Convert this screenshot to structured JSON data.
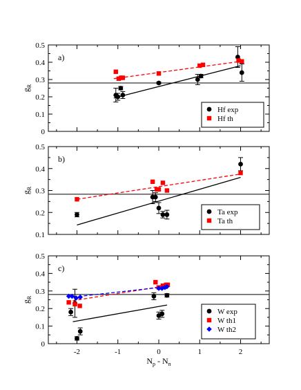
{
  "colors": {
    "exp": "#000000",
    "th": "#ff0000",
    "th2": "#0000ff",
    "frame": "#000000"
  },
  "shared_xaxis": {
    "xlim": [
      -2.7,
      2.7
    ],
    "xticks": [
      -2,
      -1,
      0,
      1,
      2
    ],
    "xlabel_main": "N",
    "xlabel_sub1": "p",
    "xlabel_mid": " - N",
    "xlabel_sub2": "n"
  },
  "chart_data": [
    {
      "type": "scatter",
      "panel_label": "a)",
      "ylabel_main": "g",
      "ylabel_sub": "R",
      "ylim": [
        0,
        0.5
      ],
      "yticks": [
        0,
        0.1,
        0.2,
        0.3,
        0.4,
        0.5
      ],
      "reference_line": 0.28,
      "fit_lines": [
        {
          "series": 0,
          "x": [
            -1.1,
            2.0
          ],
          "y": [
            0.193,
            0.38
          ],
          "style": "solid"
        },
        {
          "series": 1,
          "x": [
            -1.1,
            2.0
          ],
          "y": [
            0.305,
            0.405
          ],
          "style": "dashed"
        }
      ],
      "series": [
        {
          "name": "Hf exp",
          "marker": "circle",
          "color": "exp",
          "x": [
            -1.05,
            -1.0,
            -0.93,
            -0.88,
            0.0,
            0.95,
            1.03,
            1.93,
            2.03
          ],
          "y": [
            0.21,
            0.2,
            0.25,
            0.21,
            0.28,
            0.3,
            0.32,
            0.43,
            0.34
          ],
          "err": [
            0.04,
            0.02,
            0.01,
            0.02,
            0.005,
            0.03,
            0.01,
            0.06,
            0.05
          ]
        },
        {
          "name": "Hf th",
          "marker": "square",
          "color": "th",
          "x": [
            -1.05,
            -0.98,
            -0.92,
            -0.88,
            0.0,
            1.0,
            1.08,
            1.95,
            2.03
          ],
          "y": [
            0.345,
            0.305,
            0.31,
            0.31,
            0.335,
            0.38,
            0.385,
            0.41,
            0.405
          ]
        }
      ],
      "legend_position": "bottom-right"
    },
    {
      "type": "scatter",
      "panel_label": "b)",
      "ylabel_main": "g",
      "ylabel_sub": "R",
      "ylim": [
        0.1,
        0.5
      ],
      "yticks": [
        0.1,
        0.2,
        0.3,
        0.4,
        0.5
      ],
      "reference_line": 0.283,
      "fit_lines": [
        {
          "series": 0,
          "x": [
            -2.0,
            2.0
          ],
          "y": [
            0.143,
            0.36
          ],
          "style": "solid"
        },
        {
          "series": 1,
          "x": [
            -2.0,
            2.0
          ],
          "y": [
            0.26,
            0.375
          ],
          "style": "dashed"
        }
      ],
      "series": [
        {
          "name": "Ta exp",
          "marker": "circle",
          "color": "exp",
          "x": [
            -2.0,
            -0.15,
            -0.08,
            0.0,
            0.1,
            0.2,
            2.0
          ],
          "y": [
            0.19,
            0.27,
            0.27,
            0.22,
            0.19,
            0.19,
            0.42
          ],
          "err": [
            0.01,
            0.03,
            0.02,
            0.025,
            0.015,
            0.02,
            0.03
          ]
        },
        {
          "name": "Ta th",
          "marker": "square",
          "color": "th",
          "x": [
            -2.0,
            -0.15,
            -0.05,
            0.0,
            0.1,
            0.2,
            2.0
          ],
          "y": [
            0.26,
            0.34,
            0.305,
            0.305,
            0.335,
            0.3,
            0.38
          ]
        }
      ],
      "legend_position": "bottom-right"
    },
    {
      "type": "scatter",
      "panel_label": "c)",
      "ylabel_main": "g",
      "ylabel_sub": "R",
      "ylim": [
        0,
        0.5
      ],
      "yticks": [
        0,
        0.1,
        0.2,
        0.3,
        0.4,
        0.5
      ],
      "reference_line": 0.28,
      "fit_lines": [
        {
          "series": 0,
          "x": [
            -2.1,
            0.2
          ],
          "y": [
            0.125,
            0.22
          ],
          "style": "solid"
        },
        {
          "series": 1,
          "x": [
            -2.1,
            0.2
          ],
          "y": [
            0.245,
            0.33
          ],
          "style": "dashed"
        },
        {
          "series": 2,
          "x": [
            -2.1,
            0.2
          ],
          "y": [
            0.265,
            0.325
          ],
          "style": "dashed"
        }
      ],
      "series": [
        {
          "name": "W exp",
          "marker": "circle",
          "color": "exp",
          "x": [
            -2.15,
            -2.05,
            -2.0,
            -1.92,
            -0.12,
            0.0,
            0.08,
            0.2
          ],
          "y": [
            0.18,
            0.23,
            0.03,
            0.07,
            0.27,
            0.16,
            0.17,
            0.275
          ],
          "err": [
            0.02,
            0.08,
            0.01,
            0.02,
            0.02,
            0.02,
            0.02,
            0.01
          ]
        },
        {
          "name": "W th1",
          "marker": "square",
          "color": "th",
          "x": [
            -2.2,
            -2.05,
            -1.93,
            -0.08,
            0.0,
            0.1,
            0.18,
            0.22
          ],
          "y": [
            0.235,
            0.225,
            0.215,
            0.35,
            0.32,
            0.33,
            0.335,
            0.335
          ]
        },
        {
          "name": "W th2",
          "marker": "diamond",
          "color": "th2",
          "x": [
            -2.2,
            -2.12,
            -2.02,
            -1.92,
            0.0,
            0.08,
            0.15,
            0.2
          ],
          "y": [
            0.27,
            0.27,
            0.26,
            0.265,
            0.315,
            0.315,
            0.32,
            0.325
          ]
        }
      ],
      "legend_position": "bottom-right"
    }
  ]
}
